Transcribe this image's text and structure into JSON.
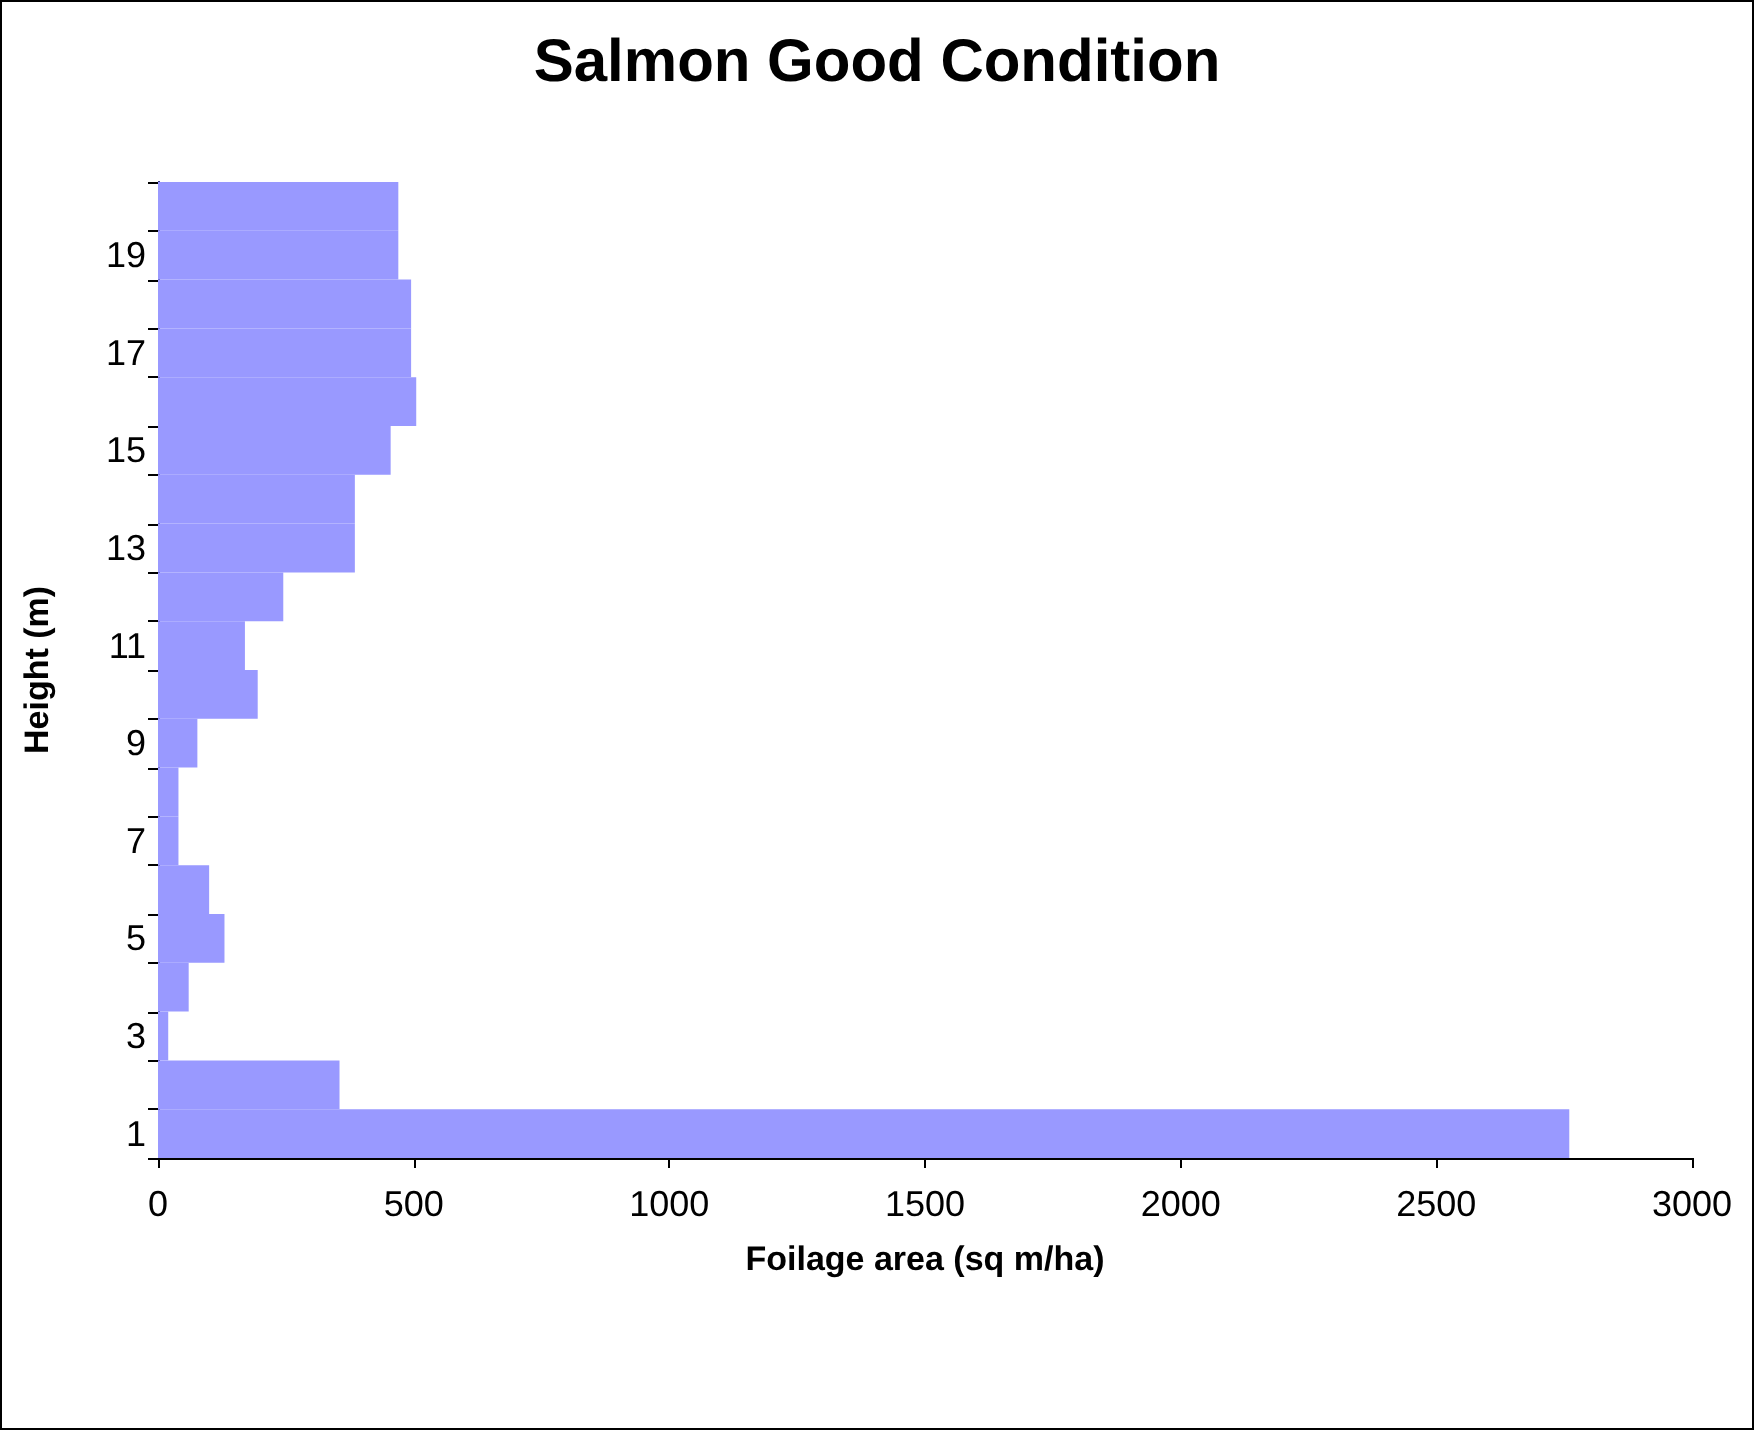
{
  "chart_data": {
    "type": "bar",
    "orientation": "horizontal",
    "title": "Salmon Good Condition",
    "xlabel": "Foilage area (sq m/ha)",
    "ylabel": "Height (m)",
    "categories": [
      null,
      "19",
      null,
      "17",
      null,
      "15",
      null,
      "13",
      null,
      "11",
      null,
      "9",
      null,
      "7",
      null,
      "5",
      null,
      "3",
      null,
      "1"
    ],
    "values": [
      470,
      470,
      495,
      495,
      505,
      455,
      385,
      385,
      245,
      170,
      195,
      77,
      40,
      40,
      100,
      130,
      60,
      20,
      355,
      2760
    ],
    "color": "#9999ff",
    "xlim": [
      0,
      3000
    ],
    "xticks": [
      0,
      500,
      1000,
      1500,
      2000,
      2500,
      3000
    ],
    "grid": false
  }
}
